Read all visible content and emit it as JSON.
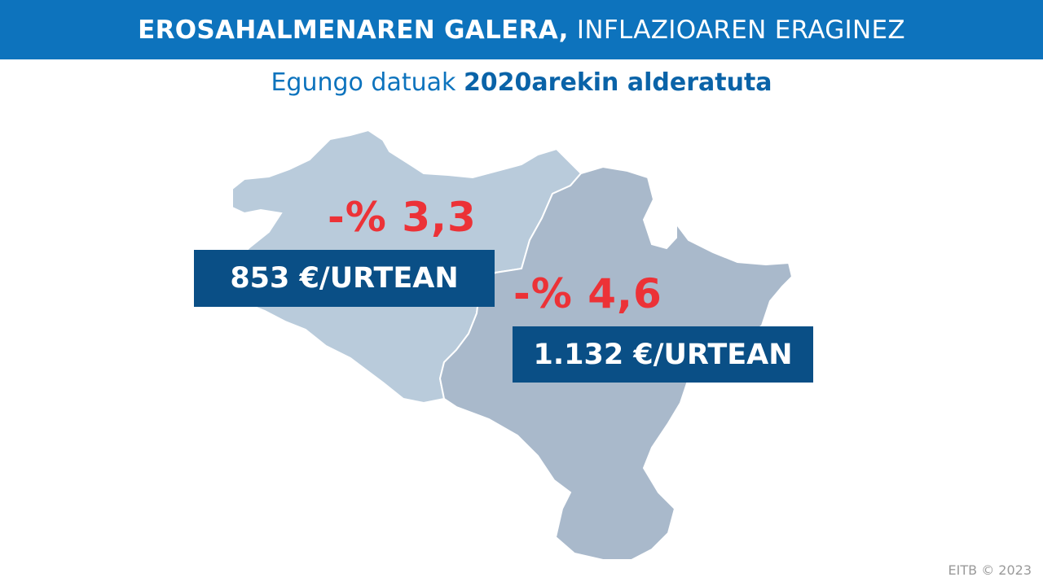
{
  "header": {
    "title_bold": "EROSAHALMENAREN GALERA,",
    "title_light": "INFLAZIOAREN ERAGINEZ"
  },
  "subtitle": {
    "text_regular": "Egungo datuak",
    "text_bold": "2020arekin alderatuta"
  },
  "map": {
    "colors": {
      "region_west": "#b9cbdb",
      "region_east": "#a9b9cb",
      "border": "#ffffff"
    },
    "regions": [
      {
        "id": "west",
        "percent_change": "-% 3,3",
        "amount": "853 €/URTEAN"
      },
      {
        "id": "east",
        "percent_change": "-% 4,6",
        "amount": "1.132 €/URTEAN"
      }
    ]
  },
  "colors": {
    "header_bg": "#0d73bd",
    "accent_red": "#ec3237",
    "box_bg": "#0a4f86"
  },
  "footer": {
    "credit": "EITB © 2023"
  }
}
